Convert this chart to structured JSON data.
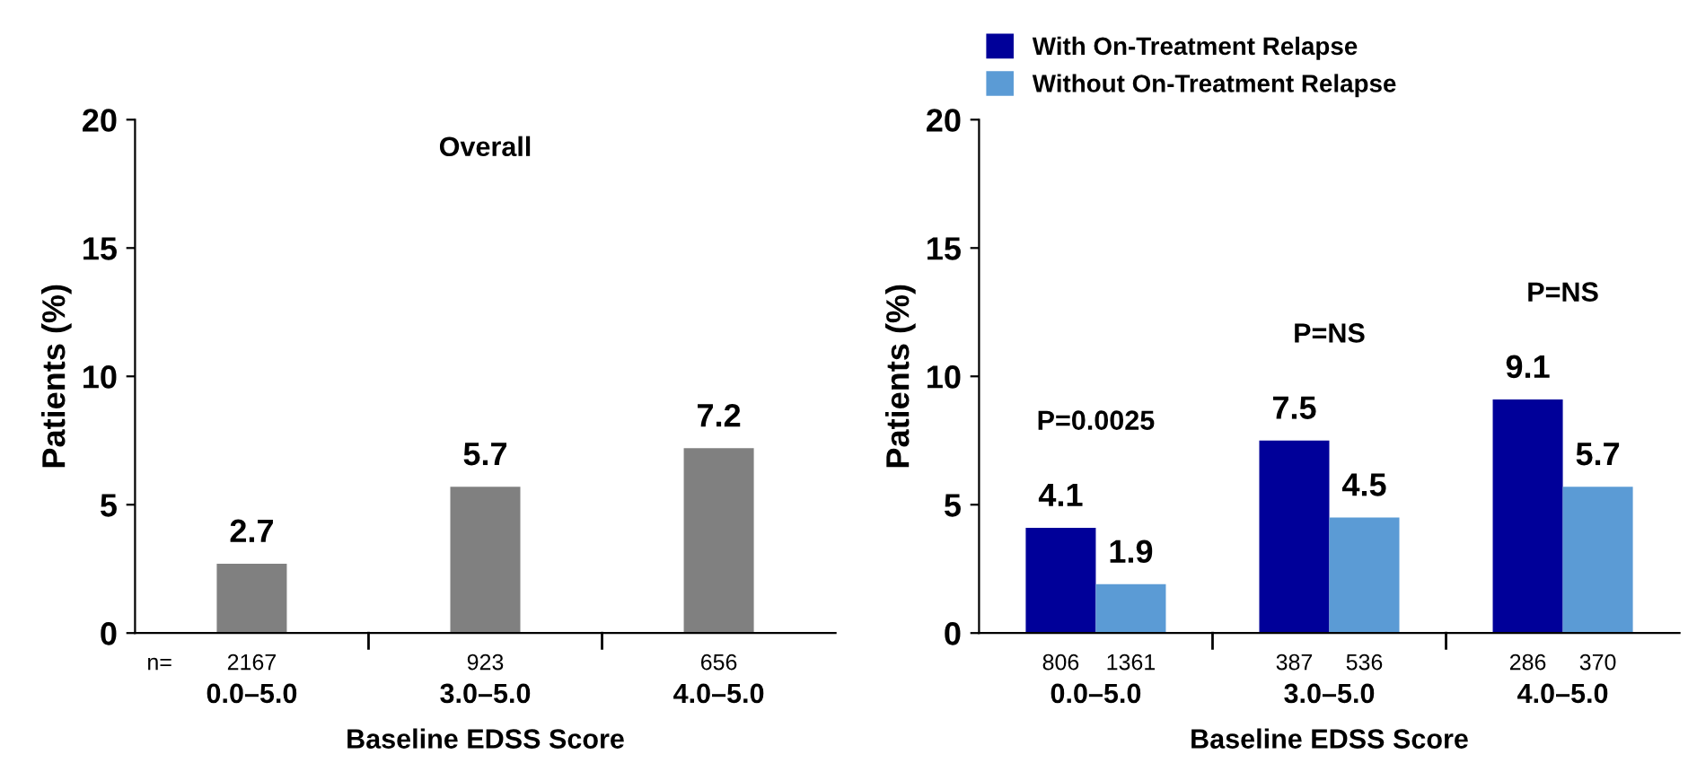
{
  "chart_data": [
    {
      "type": "bar",
      "title": "Overall",
      "xlabel": "Baseline EDSS Score",
      "ylabel": "Patients (%)",
      "categories": [
        "0.0–5.0",
        "3.0–5.0",
        "4.0–5.0"
      ],
      "series": [
        {
          "color": "#808080",
          "values": [
            2.7,
            5.7,
            7.2
          ]
        }
      ],
      "ylim": [
        0,
        20
      ],
      "yticks": [
        0,
        5,
        10,
        15,
        20
      ],
      "grid": false,
      "legend": false,
      "data_labels": true,
      "annotations": [
        "n=",
        "2167",
        "923",
        "656"
      ]
    },
    {
      "type": "bar",
      "xlabel": "Baseline EDSS Score",
      "ylabel": "Patients (%)",
      "categories": [
        "0.0–5.0",
        "3.0–5.0",
        "4.0–5.0"
      ],
      "series": [
        {
          "name": "With On-Treatment Relapse",
          "color": "#000099",
          "values": [
            4.1,
            7.5,
            9.1
          ]
        },
        {
          "name": "Without On-Treatment Relapse",
          "color": "#5b9bd5",
          "values": [
            1.9,
            4.5,
            5.7
          ]
        }
      ],
      "ylim": [
        0,
        20
      ],
      "yticks": [
        0,
        5,
        10,
        15,
        20
      ],
      "grid": false,
      "legend": "top",
      "data_labels": true,
      "annotations": [
        "P=0.0025",
        "P=NS",
        "P=NS",
        "806",
        "1361",
        "387",
        "536",
        "286",
        "370"
      ]
    }
  ]
}
